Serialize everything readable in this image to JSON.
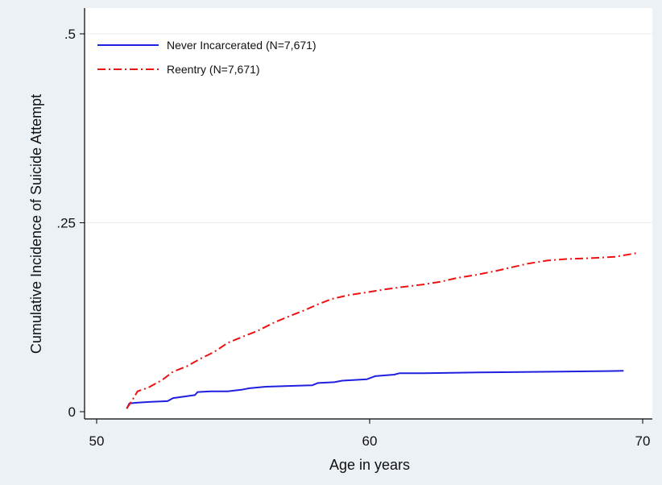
{
  "chart_data": {
    "type": "line",
    "title": "",
    "xlabel": "Age in years",
    "ylabel": "Cumulative Incidence of Suicide Attempt",
    "xlim": [
      50,
      70
    ],
    "ylim": [
      0,
      0.5
    ],
    "x_ticks": [
      {
        "value": 50,
        "label": "50"
      },
      {
        "value": 60,
        "label": "60"
      },
      {
        "value": 70,
        "label": "70"
      }
    ],
    "y_ticks": [
      {
        "value": 0,
        "label": "0"
      },
      {
        "value": 0.25,
        "label": ".25"
      },
      {
        "value": 0.5,
        "label": ".5"
      }
    ],
    "grid": "horizontal",
    "legend_position": "top-left",
    "series": [
      {
        "name": "Never Incarcerated (N=7,671)",
        "color": "#1f1fe0",
        "line_style": "solid",
        "points": [
          [
            51.1,
            0.004
          ],
          [
            51.2,
            0.011
          ],
          [
            51.5,
            0.012
          ],
          [
            52.0,
            0.013
          ],
          [
            52.6,
            0.014
          ],
          [
            52.8,
            0.018
          ],
          [
            53.2,
            0.02
          ],
          [
            53.6,
            0.022
          ],
          [
            53.7,
            0.026
          ],
          [
            54.2,
            0.027
          ],
          [
            54.8,
            0.027
          ],
          [
            55.3,
            0.029
          ],
          [
            55.6,
            0.031
          ],
          [
            56.2,
            0.033
          ],
          [
            57.0,
            0.034
          ],
          [
            57.9,
            0.035
          ],
          [
            58.1,
            0.038
          ],
          [
            58.7,
            0.039
          ],
          [
            59.0,
            0.041
          ],
          [
            59.9,
            0.043
          ],
          [
            60.2,
            0.047
          ],
          [
            60.9,
            0.049
          ],
          [
            61.1,
            0.051
          ],
          [
            62.0,
            0.051
          ],
          [
            64.0,
            0.052
          ],
          [
            67.0,
            0.053
          ],
          [
            69.3,
            0.054
          ]
        ]
      },
      {
        "name": "Reentry (N=7,671)",
        "color": "#ee1111",
        "line_style": "dash-dot",
        "points": [
          [
            51.1,
            0.004
          ],
          [
            51.3,
            0.015
          ],
          [
            51.5,
            0.027
          ],
          [
            51.9,
            0.032
          ],
          [
            52.4,
            0.042
          ],
          [
            52.8,
            0.053
          ],
          [
            53.3,
            0.06
          ],
          [
            53.8,
            0.07
          ],
          [
            54.3,
            0.079
          ],
          [
            54.8,
            0.091
          ],
          [
            55.4,
            0.1
          ],
          [
            55.9,
            0.107
          ],
          [
            56.5,
            0.118
          ],
          [
            57.1,
            0.127
          ],
          [
            57.6,
            0.134
          ],
          [
            58.1,
            0.142
          ],
          [
            58.6,
            0.149
          ],
          [
            59.2,
            0.154
          ],
          [
            59.9,
            0.158
          ],
          [
            60.6,
            0.162
          ],
          [
            61.2,
            0.165
          ],
          [
            61.9,
            0.168
          ],
          [
            62.6,
            0.172
          ],
          [
            63.2,
            0.177
          ],
          [
            63.9,
            0.181
          ],
          [
            64.6,
            0.186
          ],
          [
            65.2,
            0.191
          ],
          [
            65.8,
            0.196
          ],
          [
            66.5,
            0.2
          ],
          [
            67.2,
            0.202
          ],
          [
            68.0,
            0.203
          ],
          [
            69.0,
            0.205
          ],
          [
            69.8,
            0.21
          ]
        ]
      }
    ]
  }
}
